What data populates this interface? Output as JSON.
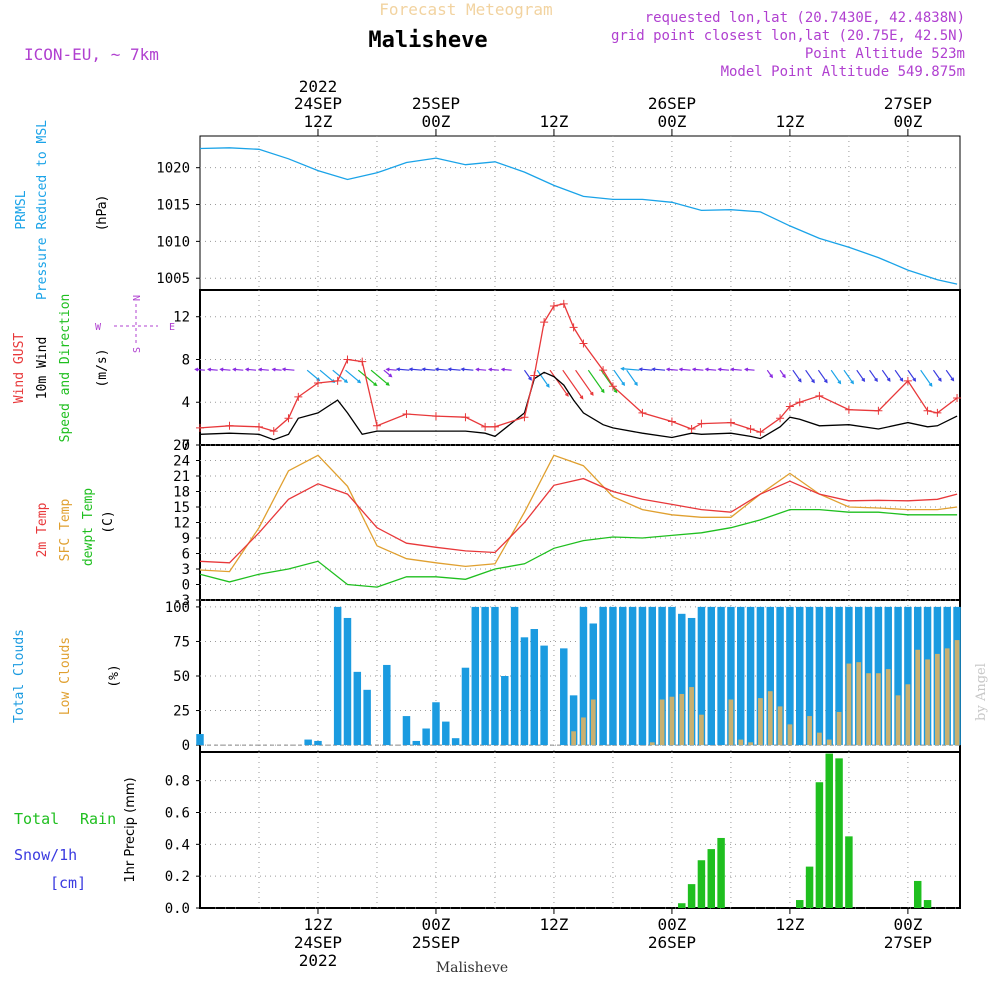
{
  "header": {
    "title_faded": "Forecast Meteogram",
    "location": "Malisheve",
    "model": "ICON-EU, ~ 7km",
    "requested": "requested lon,lat (20.7430E, 42.4838N)",
    "gridpoint": "grid point closest lon,lat (20.75E, 42.5N)",
    "point_alt": "Point Altitude 523m",
    "model_alt": "Model Point Altitude 549.875m"
  },
  "footer": {
    "location": "Malisheve",
    "credit": "by Angel"
  },
  "time_axis": {
    "top": [
      {
        "h": 12,
        "l1": "2022",
        "l2": "24SEP",
        "l3": "12Z"
      },
      {
        "h": 24,
        "l1": "",
        "l2": "25SEP",
        "l3": "00Z"
      },
      {
        "h": 36,
        "l1": "",
        "l2": "",
        "l3": "12Z"
      },
      {
        "h": 48,
        "l1": "",
        "l2": "26SEP",
        "l3": "00Z"
      },
      {
        "h": 60,
        "l1": "",
        "l2": "",
        "l3": "12Z"
      },
      {
        "h": 72,
        "l1": "",
        "l2": "27SEP",
        "l3": "00Z"
      }
    ],
    "bottom": [
      {
        "h": 12,
        "l1": "12Z",
        "l2": "24SEP",
        "l3": "2022"
      },
      {
        "h": 24,
        "l1": "00Z",
        "l2": "25SEP",
        "l3": ""
      },
      {
        "h": 36,
        "l1": "12Z",
        "l2": "",
        "l3": ""
      },
      {
        "h": 48,
        "l1": "00Z",
        "l2": "26SEP",
        "l3": ""
      },
      {
        "h": 60,
        "l1": "12Z",
        "l2": "",
        "l3": ""
      },
      {
        "h": 72,
        "l1": "00Z",
        "l2": "27SEP",
        "l3": ""
      }
    ]
  },
  "colors": {
    "pressure": "#1aa3e8",
    "gust": "#e8383a",
    "wind": "#000000",
    "wind_dir": "#1fbf1f",
    "temp": "#e8383a",
    "sfc": "#e0a030",
    "dewpt": "#1fbf1f",
    "total_clouds": "#1b9be0",
    "low_clouds": "#c8b070",
    "rain": "#1fbf1f",
    "snow": "#3a3ae0",
    "title_faded": "#f2d3a0",
    "info": "#b040d0"
  },
  "chart_data": [
    {
      "type": "line",
      "title": "PRMSL Pressure Reduced to MSL",
      "ylabel_lines": [
        "PRMSL",
        "Pressure Reduced to MSL"
      ],
      "unit": "(hPa)",
      "ylim": [
        1003.4,
        1024.3
      ],
      "yticks": [
        1005,
        1010,
        1015,
        1020
      ],
      "x_hours": [
        0,
        3,
        6,
        9,
        12,
        15,
        18,
        21,
        24,
        27,
        30,
        33,
        36,
        39,
        42,
        45,
        48,
        51,
        54,
        57,
        60,
        63,
        66,
        69,
        72,
        75,
        77
      ],
      "series": [
        {
          "name": "PRMSL",
          "values": [
            1022.6,
            1022.7,
            1022.5,
            1021.2,
            1019.6,
            1018.4,
            1019.3,
            1020.7,
            1021.3,
            1020.4,
            1020.8,
            1019.4,
            1017.6,
            1016.1,
            1015.7,
            1015.7,
            1015.3,
            1014.2,
            1014.3,
            1014.0,
            1012.1,
            1010.4,
            1009.2,
            1007.8,
            1006.1,
            1004.8,
            1004.2
          ]
        }
      ]
    },
    {
      "type": "line",
      "title": "Wind GUST / 10m Wind Speed and Direction",
      "ylabel_lines": [
        "Wind GUST",
        "10m Wind",
        "Speed and Direction"
      ],
      "unit": "(m/s)",
      "compass": {
        "n": "N",
        "s": "S",
        "w": "W",
        "e": "E"
      },
      "ylim": [
        0,
        14.5
      ],
      "yticks": [
        0,
        4,
        8,
        12
      ],
      "x_hours": [
        0,
        3,
        6,
        7.5,
        9,
        10,
        12,
        14,
        15,
        16.5,
        18,
        21,
        24,
        27,
        29,
        30,
        33,
        34,
        35,
        36,
        37,
        38,
        39,
        41,
        42,
        45,
        48,
        50,
        51,
        54,
        56,
        57,
        59,
        60,
        61,
        63,
        66,
        69,
        72,
        74,
        75,
        77
      ],
      "series": [
        {
          "name": "Wind GUST",
          "values": [
            1.6,
            1.8,
            1.7,
            1.3,
            2.5,
            4.5,
            5.8,
            6.0,
            8.0,
            7.8,
            1.8,
            2.9,
            2.7,
            2.6,
            1.7,
            1.7,
            2.6,
            6.5,
            11.5,
            13.0,
            13.2,
            11.0,
            9.5,
            7.0,
            5.5,
            3.0,
            2.2,
            1.5,
            2.0,
            2.1,
            1.5,
            1.2,
            2.5,
            3.6,
            4.0,
            4.6,
            3.3,
            3.2,
            6.0,
            3.2,
            3.0,
            4.4
          ]
        },
        {
          "name": "10m Wind",
          "values": [
            1.0,
            1.1,
            1.0,
            0.5,
            1.0,
            2.5,
            3.0,
            4.2,
            3.0,
            1.0,
            1.3,
            1.3,
            1.3,
            1.3,
            1.1,
            0.8,
            3.0,
            6.2,
            6.8,
            6.4,
            5.6,
            4.2,
            3.0,
            1.9,
            1.6,
            1.1,
            0.7,
            1.1,
            1.0,
            1.1,
            0.8,
            0.6,
            1.7,
            2.6,
            2.4,
            1.8,
            1.9,
            1.5,
            2.1,
            1.7,
            1.8,
            2.7
          ]
        }
      ]
    },
    {
      "type": "line",
      "title": "2m Temp / SFC Temp / dewpt Temp",
      "ylabel_lines": [
        "2m Temp",
        "SFC Temp",
        "dewpt Temp"
      ],
      "unit": "(C)",
      "ylim": [
        -3,
        27
      ],
      "yticks": [
        -3,
        0,
        3,
        6,
        9,
        12,
        15,
        18,
        21,
        24,
        27
      ],
      "x_hours": [
        0,
        3,
        6,
        9,
        12,
        15,
        18,
        21,
        24,
        27,
        30,
        33,
        36,
        39,
        42,
        45,
        48,
        51,
        54,
        57,
        60,
        63,
        66,
        69,
        72,
        75,
        77
      ],
      "series": [
        {
          "name": "2m Temp",
          "values": [
            4.5,
            4.2,
            10.0,
            16.5,
            19.5,
            17.5,
            11.0,
            8.0,
            7.2,
            6.5,
            6.2,
            12.0,
            19.2,
            20.5,
            18.0,
            16.5,
            15.5,
            14.5,
            14.0,
            17.5,
            20.0,
            17.5,
            16.2,
            16.3,
            16.2,
            16.5,
            17.5
          ]
        },
        {
          "name": "SFC Temp",
          "values": [
            2.8,
            2.5,
            11.0,
            22.0,
            25.0,
            19.0,
            7.5,
            5.0,
            4.2,
            3.5,
            4.0,
            14.0,
            25.0,
            23.0,
            17.0,
            14.5,
            13.5,
            13.0,
            13.0,
            17.5,
            21.5,
            17.5,
            15.0,
            14.8,
            14.5,
            14.5,
            15.0
          ]
        },
        {
          "name": "dewpt Temp",
          "values": [
            2.0,
            0.5,
            2.0,
            3.0,
            4.5,
            0.0,
            -0.5,
            1.5,
            1.5,
            1.0,
            3.0,
            4.0,
            7.0,
            8.5,
            9.2,
            9.0,
            9.5,
            10.0,
            11.0,
            12.5,
            14.5,
            14.5,
            14.0,
            14.0,
            13.5,
            13.5,
            13.5
          ]
        }
      ]
    },
    {
      "type": "bar",
      "title": "Total Clouds / Low Clouds",
      "ylabel_lines": [
        "Total Clouds",
        "Low Clouds"
      ],
      "unit": "(%)",
      "ylim": [
        -5,
        105
      ],
      "yticks": [
        0,
        25,
        50,
        75,
        100
      ],
      "start_hour": 0,
      "series": [
        {
          "name": "Total Clouds",
          "values": [
            8,
            0,
            0,
            0,
            0,
            0,
            0,
            0,
            0,
            0,
            0,
            4,
            3,
            0,
            100,
            92,
            53,
            40,
            0,
            58,
            0,
            21,
            3,
            12,
            31,
            17,
            5,
            56,
            100,
            100,
            100,
            50,
            100,
            78,
            84,
            72,
            0,
            70,
            36,
            100,
            88,
            100,
            100,
            100,
            100,
            100,
            100,
            100,
            100,
            95,
            92,
            100,
            100,
            100,
            100,
            100,
            100,
            100,
            100,
            100,
            100,
            100,
            100,
            100,
            100,
            100,
            100,
            100,
            100,
            100,
            100,
            100,
            100,
            100,
            100,
            100,
            100,
            100
          ]
        },
        {
          "name": "Low Clouds",
          "values": [
            0,
            0,
            0,
            0,
            0,
            0,
            0,
            0,
            0,
            0,
            0,
            0,
            0,
            0,
            0,
            0,
            0,
            0,
            0,
            0,
            0,
            0,
            0,
            0,
            0,
            0,
            0,
            0,
            0,
            0,
            0,
            0,
            0,
            0,
            0,
            0,
            0,
            0,
            10,
            20,
            33,
            0,
            0,
            0,
            0,
            0,
            2,
            33,
            35,
            37,
            42,
            22,
            0,
            0,
            33,
            4,
            2,
            34,
            39,
            28,
            15,
            0,
            21,
            9,
            4,
            24,
            59,
            60,
            52,
            52,
            55,
            36,
            44,
            69,
            62,
            66,
            70,
            76
          ]
        }
      ]
    },
    {
      "type": "bar",
      "title": "Total Rain / Snow 1hr Precip",
      "ylabel_lines": [
        "1hr Precip (mm)"
      ],
      "legend": {
        "total": "Total",
        "rain": "Rain",
        "snow": "Snow/1h",
        "snow_unit": "[cm]"
      },
      "ylim": [
        0,
        0.98
      ],
      "yticks": [
        0,
        0.2,
        0.4,
        0.6,
        0.8
      ],
      "start_hour": 49,
      "series": [
        {
          "name": "Rain",
          "values": [
            0.03,
            0.15,
            0.3,
            0.37,
            0.44,
            0,
            0,
            0,
            0,
            0,
            0,
            0,
            0.05,
            0.26,
            0.79,
            0.97,
            0.94,
            0.45,
            0,
            0,
            0,
            0,
            0,
            0,
            0.17,
            0.05
          ]
        }
      ]
    }
  ]
}
